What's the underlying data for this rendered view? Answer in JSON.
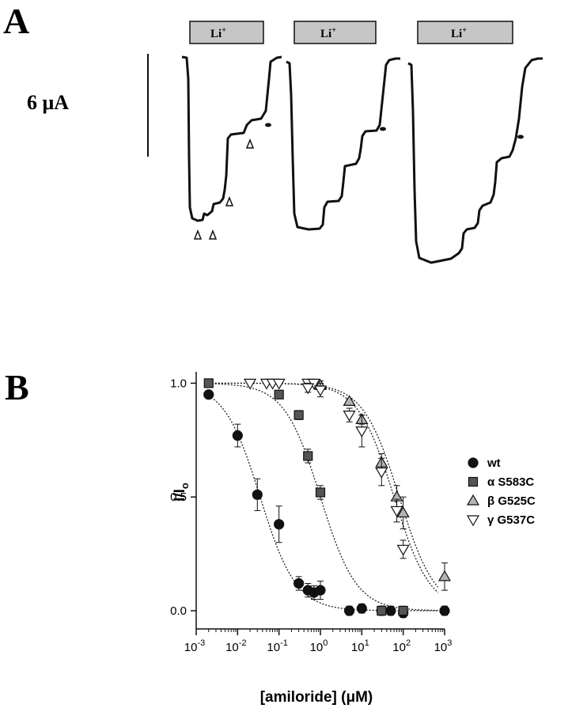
{
  "panel_a": {
    "letter": "A",
    "scale_label": "6 μA",
    "bar_label": "Li",
    "bar_label_sup": "+"
  },
  "panel_b": {
    "letter": "B"
  },
  "chart_data": {
    "type": "scatter",
    "xscale": "log",
    "xlabel_main": "[amiloride] (",
    "xlabel_unit": "μM",
    "xlabel_end": ")",
    "ylabel_main": "I/I",
    "ylabel_sub": "o",
    "xlim": [
      0.001,
      1000
    ],
    "ylim": [
      -0.08,
      1.05
    ],
    "xticks": [
      {
        "value": 0.001,
        "base": "10",
        "exp": "-3"
      },
      {
        "value": 0.01,
        "base": "10",
        "exp": "-2"
      },
      {
        "value": 0.1,
        "base": "10",
        "exp": "-1"
      },
      {
        "value": 1,
        "base": "10",
        "exp": "0"
      },
      {
        "value": 10,
        "base": "10",
        "exp": "1"
      },
      {
        "value": 100,
        "base": "10",
        "exp": "2"
      },
      {
        "value": 1000,
        "base": "10",
        "exp": "3"
      }
    ],
    "yticks": [
      {
        "value": 0.0,
        "label": "0.0"
      },
      {
        "value": 0.5,
        "label": "0.5"
      },
      {
        "value": 1.0,
        "label": "1.0"
      }
    ],
    "legend_position": "right",
    "series": [
      {
        "name": "wt",
        "marker": "circle",
        "fill": "#111111",
        "ic50": 0.035,
        "points": [
          {
            "x": 0.002,
            "y": 0.95,
            "err": 0.0
          },
          {
            "x": 0.01,
            "y": 0.77,
            "err": 0.05
          },
          {
            "x": 0.03,
            "y": 0.51,
            "err": 0.07
          },
          {
            "x": 0.1,
            "y": 0.38,
            "err": 0.08
          },
          {
            "x": 0.3,
            "y": 0.12,
            "err": 0.03
          },
          {
            "x": 0.5,
            "y": 0.09,
            "err": 0.03
          },
          {
            "x": 0.7,
            "y": 0.08,
            "err": 0.03
          },
          {
            "x": 1,
            "y": 0.09,
            "err": 0.04
          },
          {
            "x": 5,
            "y": 0.0,
            "err": 0.02
          },
          {
            "x": 10,
            "y": 0.01,
            "err": 0.02
          },
          {
            "x": 30,
            "y": 0.0,
            "err": 0.02
          },
          {
            "x": 50,
            "y": 0.0,
            "err": 0.02
          },
          {
            "x": 100,
            "y": -0.01,
            "err": 0.02
          },
          {
            "x": 1000,
            "y": 0.0,
            "err": 0.02
          }
        ]
      },
      {
        "name": "α S583C",
        "marker": "square",
        "fill": "#555555",
        "ic50": 1.0,
        "points": [
          {
            "x": 0.002,
            "y": 1.0,
            "err": 0.0
          },
          {
            "x": 0.1,
            "y": 0.95,
            "err": 0.01
          },
          {
            "x": 0.3,
            "y": 0.86,
            "err": 0.02
          },
          {
            "x": 0.5,
            "y": 0.68,
            "err": 0.03
          },
          {
            "x": 1,
            "y": 0.52,
            "err": 0.03
          },
          {
            "x": 30,
            "y": 0.0,
            "err": 0.02
          },
          {
            "x": 100,
            "y": 0.0,
            "err": 0.02
          }
        ]
      },
      {
        "name": "β G525C",
        "marker": "triangle-up",
        "fill": "#b5b5b5",
        "ic50": 80,
        "points": [
          {
            "x": 1,
            "y": 0.99,
            "err": 0.02
          },
          {
            "x": 5,
            "y": 0.92,
            "err": 0.01
          },
          {
            "x": 10,
            "y": 0.84,
            "err": 0.02
          },
          {
            "x": 30,
            "y": 0.65,
            "err": 0.04
          },
          {
            "x": 70,
            "y": 0.5,
            "err": 0.05
          },
          {
            "x": 100,
            "y": 0.43,
            "err": 0.07
          },
          {
            "x": 1000,
            "y": 0.15,
            "err": 0.06
          }
        ]
      },
      {
        "name": "γ G537C",
        "marker": "triangle-down",
        "fill": "#ffffff",
        "ic50": 60,
        "points": [
          {
            "x": 0.02,
            "y": 1.0,
            "err": 0.0
          },
          {
            "x": 0.05,
            "y": 1.0,
            "err": 0.0
          },
          {
            "x": 0.07,
            "y": 1.0,
            "err": 0.0
          },
          {
            "x": 0.1,
            "y": 1.0,
            "err": 0.0
          },
          {
            "x": 0.5,
            "y": 1.0,
            "err": 0.0
          },
          {
            "x": 0.7,
            "y": 1.0,
            "err": 0.0
          },
          {
            "x": 0.5,
            "y": 0.98,
            "err": 0.02
          },
          {
            "x": 1,
            "y": 0.97,
            "err": 0.03
          },
          {
            "x": 5,
            "y": 0.86,
            "err": 0.03
          },
          {
            "x": 10,
            "y": 0.79,
            "err": 0.07
          },
          {
            "x": 30,
            "y": 0.61,
            "err": 0.06
          },
          {
            "x": 70,
            "y": 0.44,
            "err": 0.05
          },
          {
            "x": 100,
            "y": 0.27,
            "err": 0.04
          }
        ]
      }
    ]
  }
}
